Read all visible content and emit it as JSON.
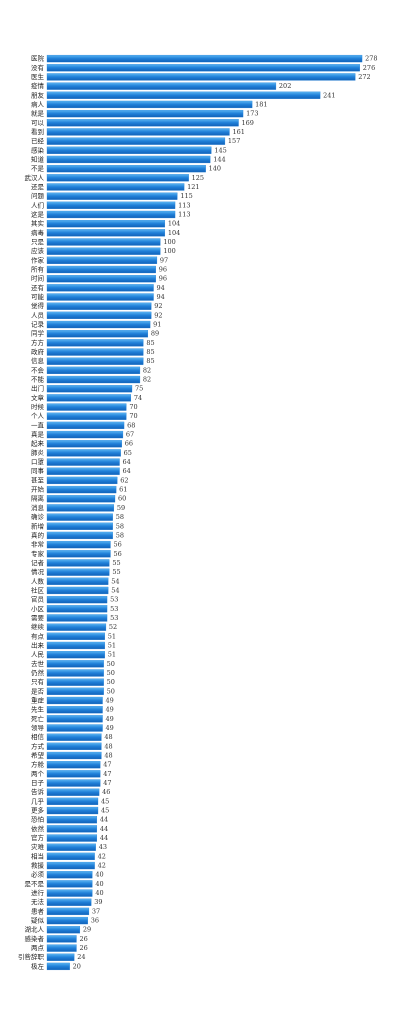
{
  "chart_data": {
    "type": "barh",
    "categories": [
      "医院",
      "没有",
      "医生",
      "疫情",
      "朋友",
      "病人",
      "就是",
      "可以",
      "看到",
      "已经",
      "感染",
      "知道",
      "不是",
      "武汉人",
      "还是",
      "问题",
      "人们",
      "这是",
      "其实",
      "病毒",
      "只是",
      "应该",
      "作家",
      "所有",
      "时间",
      "还有",
      "可能",
      "觉得",
      "人员",
      "记录",
      "同学",
      "方方",
      "政府",
      "信息",
      "不会",
      "不能",
      "出门",
      "文章",
      "时候",
      "个人",
      "一直",
      "真是",
      "起来",
      "肺炎",
      "口罩",
      "同事",
      "甚至",
      "开始",
      "隔离",
      "消息",
      "确诊",
      "新增",
      "真的",
      "非常",
      "专家",
      "记者",
      "情况",
      "人数",
      "社区",
      "官员",
      "小区",
      "需要",
      "继续",
      "有点",
      "出来",
      "人民",
      "去世",
      "仍然",
      "只有",
      "是否",
      "重症",
      "先生",
      "死亡",
      "领导",
      "相信",
      "方式",
      "希望",
      "方舱",
      "两个",
      "日子",
      "告诉",
      "几乎",
      "更多",
      "恐怕",
      "依然",
      "官方",
      "灾难",
      "相当",
      "救援",
      "必须",
      "是不是",
      "进行",
      "无法",
      "患者",
      "疑似",
      "湖北人",
      "感染者",
      "两点",
      "引咎辞职",
      "极左"
    ],
    "values": [
      278,
      276,
      272,
      202,
      241,
      181,
      173,
      169,
      161,
      157,
      145,
      144,
      140,
      125,
      121,
      115,
      113,
      113,
      104,
      104,
      100,
      100,
      97,
      96,
      96,
      94,
      94,
      92,
      92,
      91,
      89,
      85,
      85,
      85,
      82,
      82,
      75,
      74,
      70,
      70,
      68,
      67,
      66,
      65,
      64,
      64,
      62,
      61,
      60,
      59,
      58,
      58,
      58,
      56,
      56,
      55,
      55,
      54,
      54,
      53,
      53,
      53,
      52,
      51,
      51,
      51,
      50,
      50,
      50,
      50,
      49,
      49,
      49,
      49,
      48,
      48,
      48,
      47,
      47,
      47,
      46,
      45,
      45,
      44,
      44,
      44,
      43,
      42,
      42,
      40,
      40,
      40,
      39,
      37,
      36,
      29,
      26,
      26,
      24,
      20
    ],
    "color": "#1f7fd8",
    "xlim": [
      0,
      300
    ]
  }
}
